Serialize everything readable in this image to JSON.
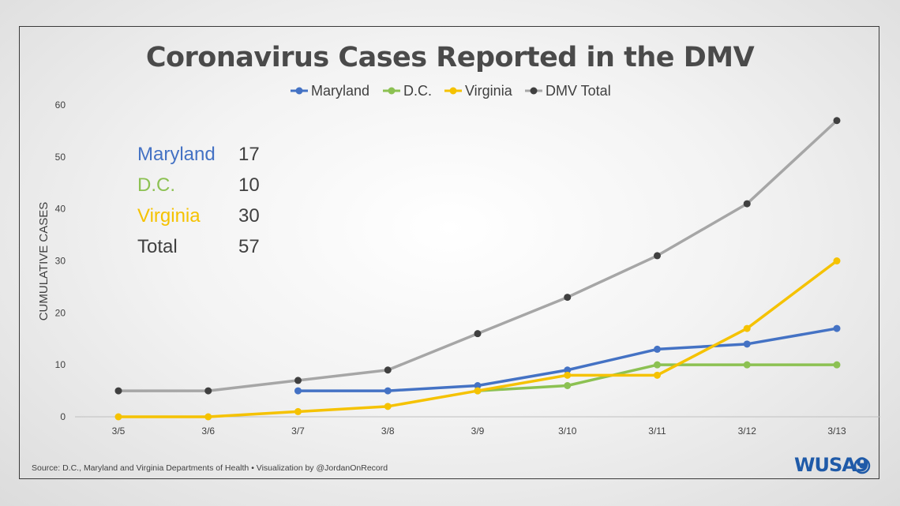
{
  "chart_data": {
    "type": "line",
    "title": "Coronavirus Cases Reported in the DMV",
    "ylabel": "CUMULATIVE CASES",
    "xlabel": "",
    "categories": [
      "3/5",
      "3/6",
      "3/7",
      "3/8",
      "3/9",
      "3/10",
      "3/11",
      "3/12",
      "3/13"
    ],
    "ylim": [
      0,
      60
    ],
    "yticks": [
      0,
      10,
      20,
      30,
      40,
      50,
      60
    ],
    "grid": false,
    "legend_position": "top",
    "series": [
      {
        "name": "Maryland",
        "color": "#4472c4",
        "values": [
          null,
          null,
          5,
          5,
          6,
          9,
          13,
          14,
          17
        ]
      },
      {
        "name": "D.C.",
        "color": "#8cc152",
        "values": [
          null,
          null,
          null,
          null,
          5,
          6,
          10,
          10,
          10
        ]
      },
      {
        "name": "Virginia",
        "color": "#f5c200",
        "values": [
          0,
          0,
          1,
          2,
          5,
          8,
          8,
          17,
          30
        ]
      },
      {
        "name": "DMV Total",
        "color": "#a6a6a6",
        "marker_color": "#404040",
        "values": [
          5,
          5,
          7,
          9,
          16,
          23,
          31,
          41,
          57
        ]
      }
    ],
    "annotations": [
      {
        "label": "Maryland",
        "value": "17",
        "color": "#4472c4"
      },
      {
        "label": "D.C.",
        "value": "10",
        "color": "#8cc152"
      },
      {
        "label": "Virginia",
        "value": "30",
        "color": "#f5c200"
      },
      {
        "label": "Total",
        "value": "57",
        "color": "#404040"
      }
    ]
  },
  "source": "Source: D.C., Maryland and Virginia Departments of Health • Visualization by @JordanOnRecord",
  "logo": {
    "text": "WUSA9"
  }
}
